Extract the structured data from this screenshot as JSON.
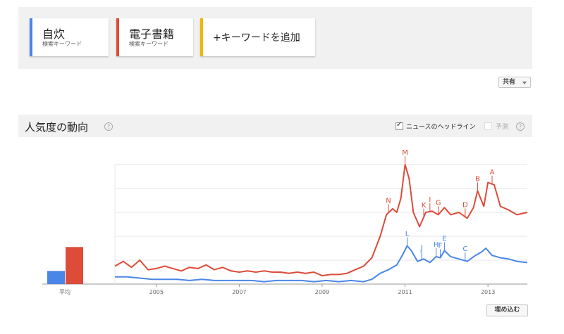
{
  "keywords": [
    {
      "name": "自炊",
      "sub": "検索キーワード",
      "color": "#4a86e8"
    },
    {
      "name": "電子書籍",
      "sub": "検索キーワード",
      "color": "#dd4b39"
    }
  ],
  "add_keyword": {
    "label": "+キーワードを追加",
    "color": "#f4b400"
  },
  "share": {
    "label": "共有"
  },
  "section": {
    "title": "人気度の動向",
    "help": "?",
    "news_headlines": {
      "label": "ニュースのヘッドライン",
      "checked": true
    },
    "forecast": {
      "label": "予測",
      "checked": false
    }
  },
  "load_button": {
    "label": "埋め込む"
  },
  "chart_data": {
    "type": "line",
    "x_ticks": [
      "2005",
      "2007",
      "2009",
      "2011",
      "2013"
    ],
    "average_label": "平均",
    "averages": [
      {
        "series": "自炊",
        "value": 11
      },
      {
        "series": "電子書籍",
        "value": 31
      }
    ],
    "ylim": [
      0,
      100
    ],
    "x_range": [
      2004.0,
      2013.95
    ],
    "grid": true,
    "series": [
      {
        "name": "自炊",
        "color": "#4a86e8",
        "points": [
          [
            2004.0,
            6
          ],
          [
            2004.3,
            6
          ],
          [
            2004.6,
            5
          ],
          [
            2004.9,
            4
          ],
          [
            2005.2,
            4
          ],
          [
            2005.5,
            4
          ],
          [
            2005.8,
            3
          ],
          [
            2006.1,
            4
          ],
          [
            2006.4,
            3
          ],
          [
            2006.7,
            3
          ],
          [
            2007.0,
            3
          ],
          [
            2007.3,
            3
          ],
          [
            2007.6,
            2
          ],
          [
            2007.9,
            3
          ],
          [
            2008.2,
            3
          ],
          [
            2008.5,
            3
          ],
          [
            2008.8,
            2
          ],
          [
            2009.1,
            3
          ],
          [
            2009.4,
            2
          ],
          [
            2009.7,
            3
          ],
          [
            2010.0,
            2
          ],
          [
            2010.2,
            4
          ],
          [
            2010.4,
            9
          ],
          [
            2010.6,
            12
          ],
          [
            2010.8,
            16
          ],
          [
            2010.95,
            25
          ],
          [
            2011.05,
            32
          ],
          [
            2011.15,
            28
          ],
          [
            2011.3,
            19
          ],
          [
            2011.45,
            21
          ],
          [
            2011.6,
            18
          ],
          [
            2011.75,
            23
          ],
          [
            2011.85,
            22
          ],
          [
            2011.95,
            28
          ],
          [
            2012.1,
            23
          ],
          [
            2012.3,
            21
          ],
          [
            2012.5,
            19
          ],
          [
            2012.7,
            24
          ],
          [
            2012.85,
            27
          ],
          [
            2012.95,
            30
          ],
          [
            2013.1,
            24
          ],
          [
            2013.3,
            22
          ],
          [
            2013.5,
            21
          ],
          [
            2013.7,
            19
          ],
          [
            2013.95,
            18
          ]
        ]
      },
      {
        "name": "電子書籍",
        "color": "#dd4b39",
        "points": [
          [
            2004.0,
            15
          ],
          [
            2004.2,
            19
          ],
          [
            2004.4,
            14
          ],
          [
            2004.6,
            20
          ],
          [
            2004.8,
            12
          ],
          [
            2005.0,
            13
          ],
          [
            2005.2,
            15
          ],
          [
            2005.4,
            13
          ],
          [
            2005.6,
            11
          ],
          [
            2005.8,
            14
          ],
          [
            2006.0,
            13
          ],
          [
            2006.2,
            16
          ],
          [
            2006.4,
            12
          ],
          [
            2006.6,
            14
          ],
          [
            2006.8,
            11
          ],
          [
            2007.0,
            10
          ],
          [
            2007.2,
            11
          ],
          [
            2007.4,
            10
          ],
          [
            2007.6,
            11
          ],
          [
            2007.8,
            10
          ],
          [
            2008.0,
            10
          ],
          [
            2008.2,
            9
          ],
          [
            2008.4,
            10
          ],
          [
            2008.6,
            9
          ],
          [
            2008.8,
            10
          ],
          [
            2009.0,
            7
          ],
          [
            2009.2,
            8
          ],
          [
            2009.4,
            8
          ],
          [
            2009.6,
            9
          ],
          [
            2009.8,
            12
          ],
          [
            2010.0,
            15
          ],
          [
            2010.2,
            22
          ],
          [
            2010.4,
            40
          ],
          [
            2010.55,
            58
          ],
          [
            2010.7,
            63
          ],
          [
            2010.8,
            60
          ],
          [
            2010.9,
            72
          ],
          [
            2011.0,
            100
          ],
          [
            2011.1,
            88
          ],
          [
            2011.2,
            60
          ],
          [
            2011.35,
            48
          ],
          [
            2011.5,
            60
          ],
          [
            2011.65,
            61
          ],
          [
            2011.8,
            58
          ],
          [
            2011.95,
            64
          ],
          [
            2012.1,
            58
          ],
          [
            2012.3,
            60
          ],
          [
            2012.5,
            55
          ],
          [
            2012.65,
            64
          ],
          [
            2012.75,
            78
          ],
          [
            2012.9,
            65
          ],
          [
            2013.0,
            85
          ],
          [
            2013.15,
            83
          ],
          [
            2013.3,
            65
          ],
          [
            2013.5,
            62
          ],
          [
            2013.7,
            58
          ],
          [
            2013.95,
            60
          ]
        ]
      }
    ],
    "annotations": [
      {
        "label": "N",
        "series": "電子書籍",
        "x": 2010.6
      },
      {
        "label": "M",
        "series": "電子書籍",
        "x": 2011.0
      },
      {
        "label": "K",
        "series": "電子書籍",
        "x": 2011.45
      },
      {
        "label": "I",
        "series": "電子書籍",
        "x": 2011.6
      },
      {
        "label": "G",
        "series": "電子書籍",
        "x": 2011.8
      },
      {
        "label": "D",
        "series": "電子書籍",
        "x": 2012.45
      },
      {
        "label": "B",
        "series": "電子書籍",
        "x": 2012.75
      },
      {
        "label": "A",
        "series": "電子書籍",
        "x": 2013.1
      },
      {
        "label": "L",
        "series": "自炊",
        "x": 2011.05
      },
      {
        "label": "J",
        "series": "自炊",
        "x": 2011.4
      },
      {
        "label": "H",
        "series": "自炊",
        "x": 2011.75
      },
      {
        "label": "F",
        "series": "自炊",
        "x": 2011.85
      },
      {
        "label": "E",
        "series": "自炊",
        "x": 2011.95
      },
      {
        "label": "C",
        "series": "自炊",
        "x": 2012.45
      }
    ]
  }
}
